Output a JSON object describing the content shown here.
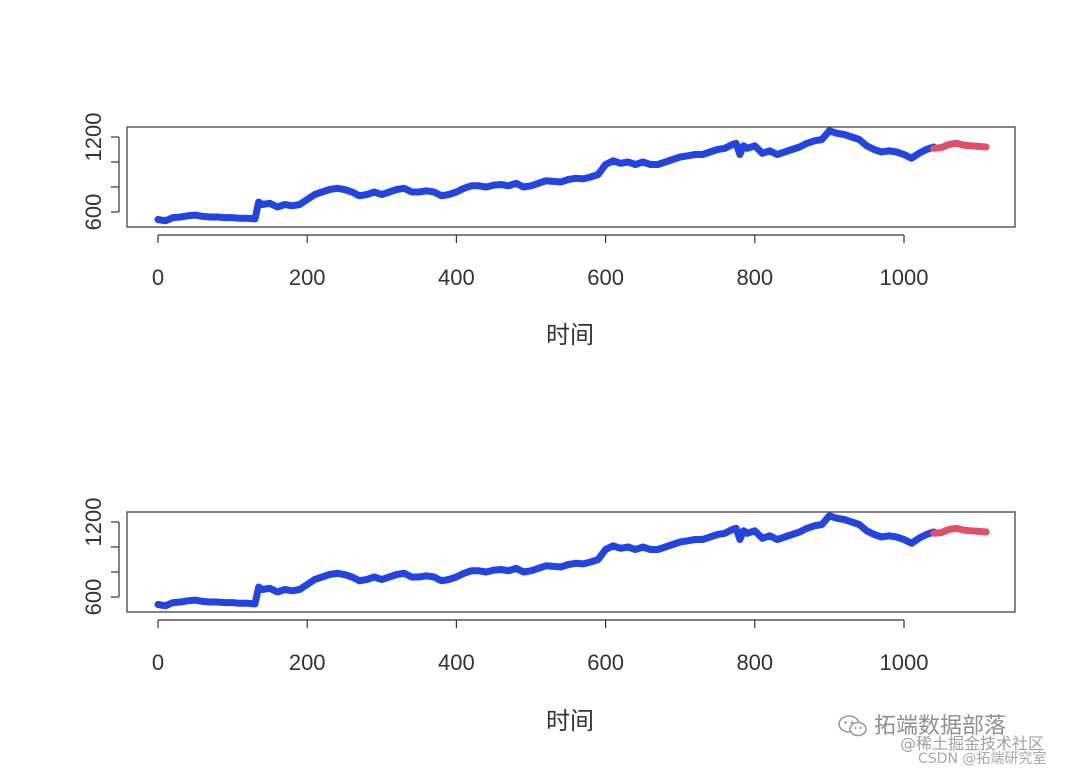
{
  "chart_data": [
    {
      "type": "line",
      "xlabel": "时间",
      "ylabel": "",
      "xlim": [
        0,
        1100
      ],
      "ylim": [
        480,
        1280
      ],
      "x_ticks": [
        "0",
        "200",
        "400",
        "600",
        "800",
        "1000"
      ],
      "y_ticks": [
        "600",
        "1200"
      ],
      "y_minor_ticks": [
        600,
        800,
        1000,
        1200
      ],
      "series": [
        {
          "role": "observed",
          "color": "#2244e0",
          "x": [
            0,
            10,
            20,
            30,
            40,
            50,
            60,
            70,
            80,
            90,
            100,
            110,
            120,
            130,
            135,
            140,
            150,
            160,
            170,
            180,
            190,
            200,
            210,
            220,
            230,
            240,
            250,
            260,
            270,
            280,
            290,
            300,
            310,
            320,
            330,
            340,
            350,
            360,
            370,
            380,
            390,
            400,
            410,
            420,
            430,
            440,
            450,
            460,
            470,
            480,
            490,
            500,
            510,
            520,
            530,
            540,
            550,
            560,
            570,
            580,
            590,
            600,
            610,
            620,
            630,
            640,
            650,
            660,
            670,
            680,
            690,
            700,
            710,
            720,
            730,
            740,
            750,
            760,
            770,
            775,
            780,
            785,
            790,
            800,
            810,
            820,
            830,
            840,
            850,
            860,
            870,
            880,
            890,
            900,
            910,
            920,
            930,
            940,
            950,
            960,
            970,
            980,
            990,
            1000,
            1010,
            1020,
            1030,
            1040
          ],
          "y": [
            540,
            530,
            555,
            560,
            570,
            575,
            565,
            560,
            560,
            555,
            555,
            550,
            550,
            545,
            680,
            660,
            670,
            640,
            660,
            650,
            660,
            700,
            740,
            760,
            780,
            790,
            780,
            760,
            730,
            740,
            760,
            740,
            760,
            780,
            790,
            760,
            760,
            770,
            760,
            730,
            740,
            760,
            790,
            810,
            810,
            800,
            815,
            820,
            810,
            830,
            800,
            810,
            830,
            850,
            845,
            840,
            860,
            870,
            865,
            880,
            900,
            980,
            1010,
            990,
            1000,
            980,
            1000,
            980,
            980,
            1000,
            1020,
            1040,
            1050,
            1060,
            1060,
            1080,
            1100,
            1110,
            1140,
            1150,
            1060,
            1130,
            1110,
            1130,
            1070,
            1090,
            1060,
            1080,
            1100,
            1120,
            1150,
            1170,
            1180,
            1250,
            1230,
            1220,
            1200,
            1180,
            1130,
            1100,
            1080,
            1090,
            1080,
            1060,
            1030,
            1070,
            1100,
            1120
          ]
        },
        {
          "role": "forecast",
          "color": "#df4f6a",
          "x": [
            1040,
            1050,
            1060,
            1070,
            1080,
            1090,
            1100,
            1110
          ],
          "y": [
            1110,
            1115,
            1140,
            1150,
            1135,
            1130,
            1125,
            1120
          ]
        }
      ]
    },
    {
      "type": "line",
      "xlabel": "时间",
      "ylabel": "",
      "xlim": [
        0,
        1100
      ],
      "ylim": [
        480,
        1280
      ],
      "x_ticks": [
        "0",
        "200",
        "400",
        "600",
        "800",
        "1000"
      ],
      "y_ticks": [
        "600",
        "1200"
      ],
      "y_minor_ticks": [
        600,
        800,
        1000,
        1200
      ],
      "series": [
        {
          "role": "observed",
          "color": "#2244e0",
          "x": [
            0,
            10,
            20,
            30,
            40,
            50,
            60,
            70,
            80,
            90,
            100,
            110,
            120,
            130,
            135,
            140,
            150,
            160,
            170,
            180,
            190,
            200,
            210,
            220,
            230,
            240,
            250,
            260,
            270,
            280,
            290,
            300,
            310,
            320,
            330,
            340,
            350,
            360,
            370,
            380,
            390,
            400,
            410,
            420,
            430,
            440,
            450,
            460,
            470,
            480,
            490,
            500,
            510,
            520,
            530,
            540,
            550,
            560,
            570,
            580,
            590,
            600,
            610,
            620,
            630,
            640,
            650,
            660,
            670,
            680,
            690,
            700,
            710,
            720,
            730,
            740,
            750,
            760,
            770,
            775,
            780,
            785,
            790,
            800,
            810,
            820,
            830,
            840,
            850,
            860,
            870,
            880,
            890,
            900,
            910,
            920,
            930,
            940,
            950,
            960,
            970,
            980,
            990,
            1000,
            1010,
            1020,
            1030,
            1040
          ],
          "y": [
            540,
            530,
            555,
            560,
            570,
            575,
            565,
            560,
            560,
            555,
            555,
            550,
            550,
            545,
            680,
            660,
            670,
            640,
            660,
            650,
            660,
            700,
            740,
            760,
            780,
            790,
            780,
            760,
            730,
            740,
            760,
            740,
            760,
            780,
            790,
            760,
            760,
            770,
            760,
            730,
            740,
            760,
            790,
            810,
            810,
            800,
            815,
            820,
            810,
            830,
            800,
            810,
            830,
            850,
            845,
            840,
            860,
            870,
            865,
            880,
            900,
            980,
            1010,
            990,
            1000,
            980,
            1000,
            980,
            980,
            1000,
            1020,
            1040,
            1050,
            1060,
            1060,
            1080,
            1100,
            1110,
            1140,
            1150,
            1060,
            1130,
            1110,
            1130,
            1070,
            1090,
            1060,
            1080,
            1100,
            1120,
            1150,
            1170,
            1180,
            1250,
            1230,
            1220,
            1200,
            1180,
            1130,
            1100,
            1080,
            1090,
            1080,
            1060,
            1030,
            1070,
            1100,
            1120
          ]
        },
        {
          "role": "forecast",
          "color": "#df4f6a",
          "x": [
            1040,
            1050,
            1060,
            1070,
            1080,
            1090,
            1100,
            1110
          ],
          "y": [
            1110,
            1115,
            1140,
            1150,
            1135,
            1130,
            1125,
            1120
          ]
        }
      ]
    }
  ],
  "watermark": {
    "brand": "拓端数据部落",
    "line2": "@稀土掘金技术社区",
    "line3": "CSDN @拓端研究室",
    "icon": "wechat-icon"
  }
}
